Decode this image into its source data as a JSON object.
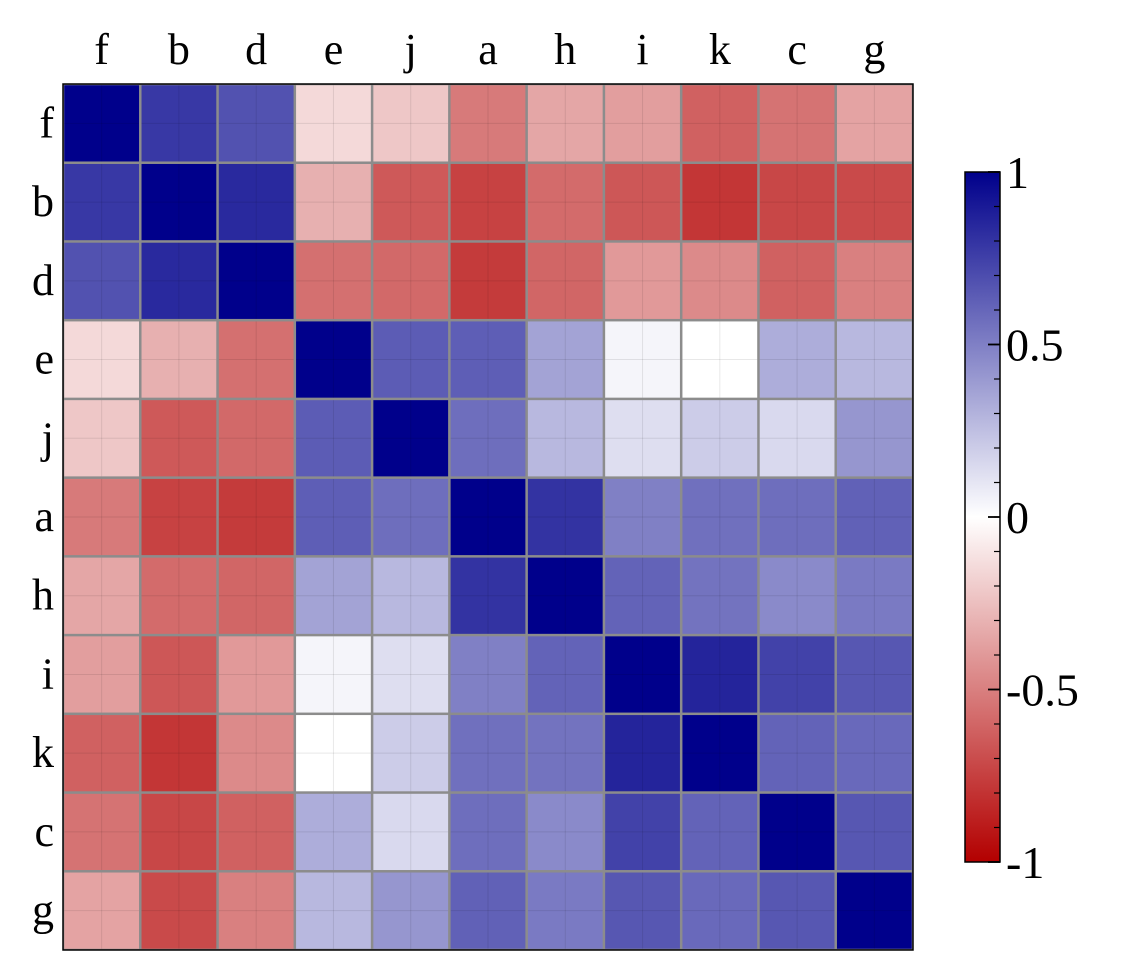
{
  "chart_data": {
    "type": "heatmap",
    "title": "",
    "xlabel": "",
    "ylabel": "",
    "labels": [
      "f",
      "b",
      "d",
      "e",
      "j",
      "a",
      "h",
      "i",
      "k",
      "c",
      "g"
    ],
    "matrix": [
      [
        1.0,
        0.78,
        0.68,
        -0.15,
        -0.22,
        -0.52,
        -0.35,
        -0.38,
        -0.62,
        -0.55,
        -0.36
      ],
      [
        0.78,
        1.0,
        0.84,
        -0.31,
        -0.65,
        -0.74,
        -0.58,
        -0.66,
        -0.79,
        -0.72,
        -0.71
      ],
      [
        0.68,
        0.84,
        1.0,
        -0.56,
        -0.59,
        -0.77,
        -0.6,
        -0.4,
        -0.46,
        -0.62,
        -0.5
      ],
      [
        -0.15,
        -0.31,
        -0.56,
        1.0,
        0.64,
        0.63,
        0.36,
        0.04,
        0.0,
        0.32,
        0.28
      ],
      [
        -0.22,
        -0.65,
        -0.59,
        0.64,
        1.0,
        0.57,
        0.28,
        0.13,
        0.2,
        0.15,
        0.41
      ],
      [
        -0.52,
        -0.74,
        -0.77,
        0.63,
        0.57,
        1.0,
        0.8,
        0.5,
        0.56,
        0.57,
        0.62
      ],
      [
        -0.35,
        -0.58,
        -0.6,
        0.36,
        0.28,
        0.8,
        1.0,
        0.61,
        0.55,
        0.46,
        0.52
      ],
      [
        -0.38,
        -0.66,
        -0.4,
        0.04,
        0.13,
        0.5,
        0.61,
        1.0,
        0.86,
        0.74,
        0.66
      ],
      [
        -0.62,
        -0.79,
        -0.46,
        0.0,
        0.2,
        0.56,
        0.55,
        0.86,
        1.0,
        0.61,
        0.59
      ],
      [
        -0.55,
        -0.72,
        -0.62,
        0.32,
        0.15,
        0.57,
        0.46,
        0.74,
        0.61,
        1.0,
        0.66
      ],
      [
        -0.36,
        -0.71,
        -0.5,
        0.28,
        0.41,
        0.62,
        0.52,
        0.66,
        0.59,
        0.66,
        1.0
      ]
    ],
    "colorbar": {
      "min": -1,
      "max": 1,
      "ticks": [
        1,
        0.5,
        0,
        -0.5,
        -1
      ],
      "tick_labels": [
        "1",
        "0.5",
        "0",
        "-0.5",
        "-1"
      ],
      "colors": {
        "negative": "#b30000",
        "zero": "#ffffff",
        "positive": "#00008b"
      }
    },
    "grid_color": "#8c8c8c",
    "legend": "right"
  }
}
